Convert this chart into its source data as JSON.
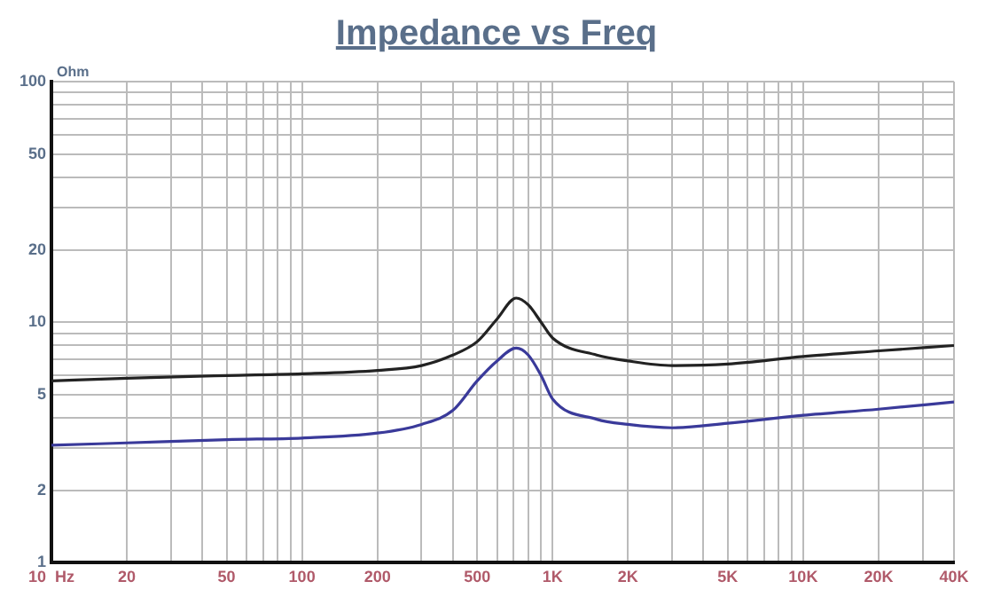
{
  "chart_data": {
    "type": "line",
    "title": "Impedance vs Freq",
    "ylabel": "Ohm",
    "log": "xy",
    "grid": true,
    "legend": false,
    "marker": "none",
    "line_style": "solid",
    "x": [
      10,
      20,
      50,
      100,
      200,
      300,
      400,
      500,
      600,
      716,
      800,
      900,
      1000,
      1500,
      2000,
      3000,
      5000,
      10000,
      20000,
      40000
    ],
    "series": [
      {
        "color": "#222222",
        "values": [
          5.7,
          5.85,
          6.0,
          6.1,
          6.3,
          6.6,
          7.3,
          8.3,
          10.3,
          12.6,
          11.8,
          10.0,
          8.6,
          7.3,
          6.9,
          6.6,
          6.7,
          7.2,
          7.6,
          8.0
        ]
      },
      {
        "color": "#3a3a9a",
        "values": [
          3.08,
          3.15,
          3.25,
          3.3,
          3.46,
          3.76,
          4.3,
          5.7,
          6.9,
          7.8,
          7.3,
          6.0,
          4.8,
          3.95,
          3.76,
          3.64,
          3.8,
          4.1,
          4.35,
          4.66
        ]
      }
    ],
    "xlim": [
      10,
      40000
    ],
    "ylim": [
      1,
      100
    ],
    "xticks": [
      {
        "value": 10,
        "label": "10  Hz"
      },
      20,
      {
        "value": 30,
        "label": null
      },
      {
        "value": 40,
        "label": null
      },
      50,
      {
        "value": 60,
        "label": null
      },
      {
        "value": 70,
        "label": null
      },
      {
        "value": 80,
        "label": null
      },
      {
        "value": 90,
        "label": null
      },
      100,
      200,
      {
        "value": 300,
        "label": null
      },
      {
        "value": 400,
        "label": null
      },
      500,
      {
        "value": 600,
        "label": null
      },
      {
        "value": 700,
        "label": null
      },
      {
        "value": 800,
        "label": null
      },
      {
        "value": 900,
        "label": null
      },
      {
        "value": 1000,
        "label": "1K"
      },
      {
        "value": 2000,
        "label": "2K"
      },
      {
        "value": 3000,
        "label": null
      },
      {
        "value": 4000,
        "label": null
      },
      {
        "value": 5000,
        "label": "5K"
      },
      {
        "value": 6000,
        "label": null
      },
      {
        "value": 7000,
        "label": null
      },
      {
        "value": 8000,
        "label": null
      },
      {
        "value": 9000,
        "label": null
      },
      {
        "value": 10000,
        "label": "10K"
      },
      {
        "value": 20000,
        "label": "20K"
      },
      {
        "value": 30000,
        "label": null
      },
      {
        "value": 40000,
        "label": "40K"
      }
    ],
    "yticks": [
      1,
      2,
      {
        "value": 3,
        "label": null
      },
      {
        "value": 4,
        "label": null
      },
      5,
      {
        "value": 6,
        "label": null
      },
      {
        "value": 7,
        "label": null
      },
      {
        "value": 8,
        "label": null
      },
      {
        "value": 9,
        "label": null
      },
      10,
      20,
      {
        "value": 30,
        "label": null
      },
      {
        "value": 40,
        "label": null
      },
      50,
      {
        "value": 60,
        "label": null
      },
      {
        "value": 70,
        "label": null
      },
      {
        "value": 80,
        "label": null
      },
      {
        "value": 90,
        "label": null
      },
      100
    ]
  }
}
